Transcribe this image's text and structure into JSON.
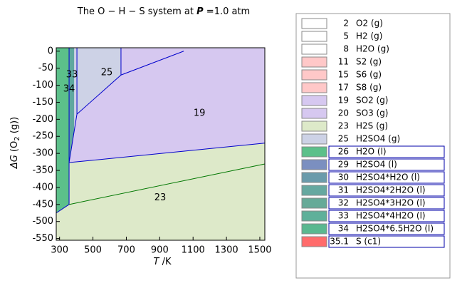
{
  "chart_data": {
    "type": "region",
    "title": {
      "text": "The O − H − S system at",
      "symbol": "P",
      "value": "=1.0 atm"
    },
    "x_label": {
      "symbol": "T",
      "unit": "/K"
    },
    "y_label": {
      "symbol": "ΔG",
      "open": "(O",
      "sub": "2",
      "close": " (g))"
    },
    "xlim": [
      280,
      1530
    ],
    "ylim": [
      -555,
      10
    ],
    "xticks": [
      300,
      500,
      700,
      900,
      1100,
      1300,
      1500
    ],
    "yticks": [
      0,
      -50,
      -100,
      -150,
      -200,
      -250,
      -300,
      -350,
      -400,
      -450,
      -500,
      -550
    ],
    "regions": [
      {
        "label": "23",
        "color": "#dde9c9",
        "x": [
          280,
          357,
          357,
          1530,
          1530,
          280
        ],
        "values": [
          -475,
          -450,
          -327,
          -270,
          -555,
          -555
        ],
        "label_at": [
          903,
          -431
        ]
      },
      {
        "label": "19",
        "color": "#d6c8f0",
        "x": [
          357,
          404,
          668,
          668,
          1530,
          1530
        ],
        "values": [
          -327,
          -185,
          -70,
          10,
          10,
          -270
        ],
        "label_at": [
          1138,
          -182
        ]
      },
      {
        "label": "25",
        "color": "#cdd2e6",
        "x": [
          387,
          668,
          668,
          404,
          387
        ],
        "values": [
          10,
          10,
          -70,
          -185,
          -236
        ],
        "label_at": [
          583,
          -63
        ]
      },
      {
        "label": "34",
        "color": "#5cc08a",
        "x": [
          280,
          357,
          357,
          280
        ],
        "values": [
          10,
          10,
          -450,
          -475
        ],
        "label_at": [
          357,
          -111
        ]
      },
      {
        "label": "33",
        "color": "#5fa8a0",
        "x": [
          357,
          387,
          387,
          357
        ],
        "values": [
          10,
          10,
          -236,
          -327
        ],
        "label_at": [
          374,
          -70
        ]
      }
    ],
    "boundaries": [
      {
        "color": "#0000cc",
        "x": [
          357,
          1530
        ],
        "values": [
          -327,
          -270
        ]
      },
      {
        "color": "#0000cc",
        "x": [
          357,
          404,
          668,
          1044
        ],
        "values": [
          -327,
          -185,
          -70,
          0
        ]
      },
      {
        "color": "#0000cc",
        "x": [
          668,
          668
        ],
        "values": [
          10,
          -70
        ]
      },
      {
        "color": "#0000cc",
        "x": [
          357,
          357
        ],
        "values": [
          10,
          -450
        ]
      },
      {
        "color": "#0000cc",
        "x": [
          404,
          404
        ],
        "values": [
          10,
          -185
        ]
      },
      {
        "color": "#0000cc",
        "x": [
          280,
          357
        ],
        "values": [
          -475,
          -450
        ]
      },
      {
        "color": "#007700",
        "x": [
          357,
          1530
        ],
        "values": [
          -450,
          -331
        ]
      }
    ],
    "legend": [
      {
        "id": "2",
        "name": "O2 (g)",
        "color": "#ffffff",
        "boxed": false
      },
      {
        "id": "5",
        "name": "H2 (g)",
        "color": "#ffffff",
        "boxed": false
      },
      {
        "id": "8",
        "name": "H2O (g)",
        "color": "#ffffff",
        "boxed": false
      },
      {
        "id": "11",
        "name": "S2 (g)",
        "color": "#ffc8c8",
        "boxed": false
      },
      {
        "id": "15",
        "name": "S6 (g)",
        "color": "#ffc8c8",
        "boxed": false
      },
      {
        "id": "17",
        "name": "S8 (g)",
        "color": "#ffc8c8",
        "boxed": false
      },
      {
        "id": "19",
        "name": "SO2 (g)",
        "color": "#d6c8f0",
        "boxed": false
      },
      {
        "id": "20",
        "name": "SO3 (g)",
        "color": "#d6c8f0",
        "boxed": false
      },
      {
        "id": "23",
        "name": "H2S (g)",
        "color": "#dde9c9",
        "boxed": false
      },
      {
        "id": "25",
        "name": "H2SO4 (g)",
        "color": "#cdd2e6",
        "boxed": false
      },
      {
        "id": "26",
        "name": "H2O (l)",
        "color": "#5cc08a",
        "boxed": true
      },
      {
        "id": "29",
        "name": "H2SO4 (l)",
        "color": "#7b8fc0",
        "boxed": true
      },
      {
        "id": "30",
        "name": "H2SO4*H2O (l)",
        "color": "#6a9bab",
        "boxed": true
      },
      {
        "id": "31",
        "name": "H2SO4*2H2O (l)",
        "color": "#66a8a0",
        "boxed": true
      },
      {
        "id": "32",
        "name": "H2SO4*3H2O (l)",
        "color": "#66aa98",
        "boxed": true
      },
      {
        "id": "33",
        "name": "H2SO4*4H2O (l)",
        "color": "#5fb09a",
        "boxed": true
      },
      {
        "id": "34",
        "name": "H2SO4*6.5H2O (l)",
        "color": "#5ab890",
        "boxed": true
      },
      {
        "id": "35.1",
        "name": "S (c1)",
        "color": "#ff6b6b",
        "boxed": true
      }
    ]
  }
}
